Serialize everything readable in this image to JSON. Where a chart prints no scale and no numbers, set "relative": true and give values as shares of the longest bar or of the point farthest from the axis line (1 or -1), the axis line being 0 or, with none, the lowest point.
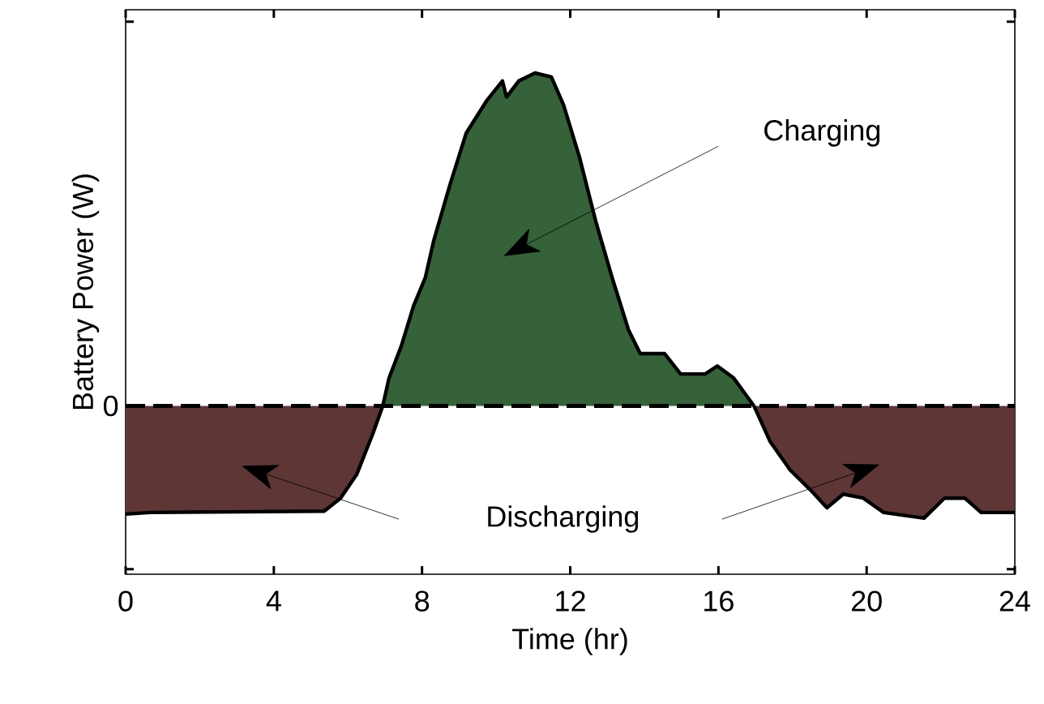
{
  "chart_data": {
    "type": "area",
    "relative": true,
    "xlabel": "Time (hr)",
    "ylabel": "Battery Power (W)",
    "xlim": [
      0,
      24
    ],
    "xticks": [
      0,
      4,
      8,
      12,
      16,
      20,
      24
    ],
    "grid": false,
    "series": [
      {
        "color": "#5e3636",
        "x": [
          0,
          0.66,
          5.36,
          5.8,
          6.24,
          6.67,
          6.94
        ],
        "values": [
          -0.325,
          -0.32,
          -0.316,
          -0.277,
          -0.205,
          -0.084,
          0
        ]
      },
      {
        "color": "#356238",
        "x": [
          6.94,
          7.11,
          7.44,
          7.77,
          8.09,
          8.31,
          8.75,
          9.19,
          9.74,
          10.17,
          10.28,
          10.61,
          11.05,
          11.49,
          11.82,
          12.25,
          12.69,
          13.13,
          13.57,
          13.89,
          14.55,
          14.98,
          15.64,
          15.97,
          16.41,
          16.96
        ],
        "values": [
          0,
          0.084,
          0.18,
          0.3,
          0.386,
          0.494,
          0.663,
          0.819,
          0.916,
          0.976,
          0.928,
          0.976,
          1.0,
          0.988,
          0.904,
          0.747,
          0.554,
          0.386,
          0.229,
          0.157,
          0.157,
          0.096,
          0.096,
          0.12,
          0.084,
          0
        ]
      },
      {
        "color": "#5e3636",
        "x": [
          16.96,
          17.4,
          17.94,
          18.49,
          18.93,
          19.37,
          19.91,
          20.46,
          21.55,
          22.1,
          22.65,
          23.09,
          24
        ],
        "values": [
          0,
          -0.108,
          -0.193,
          -0.253,
          -0.306,
          -0.265,
          -0.277,
          -0.32,
          -0.337,
          -0.277,
          -0.277,
          -0.32,
          -0.32
        ]
      }
    ],
    "ref_lines": [
      {
        "axis": "y",
        "value": 0,
        "label": "0",
        "line_style": "dashed"
      }
    ],
    "annotations": [
      "Charging",
      "Discharging"
    ]
  }
}
